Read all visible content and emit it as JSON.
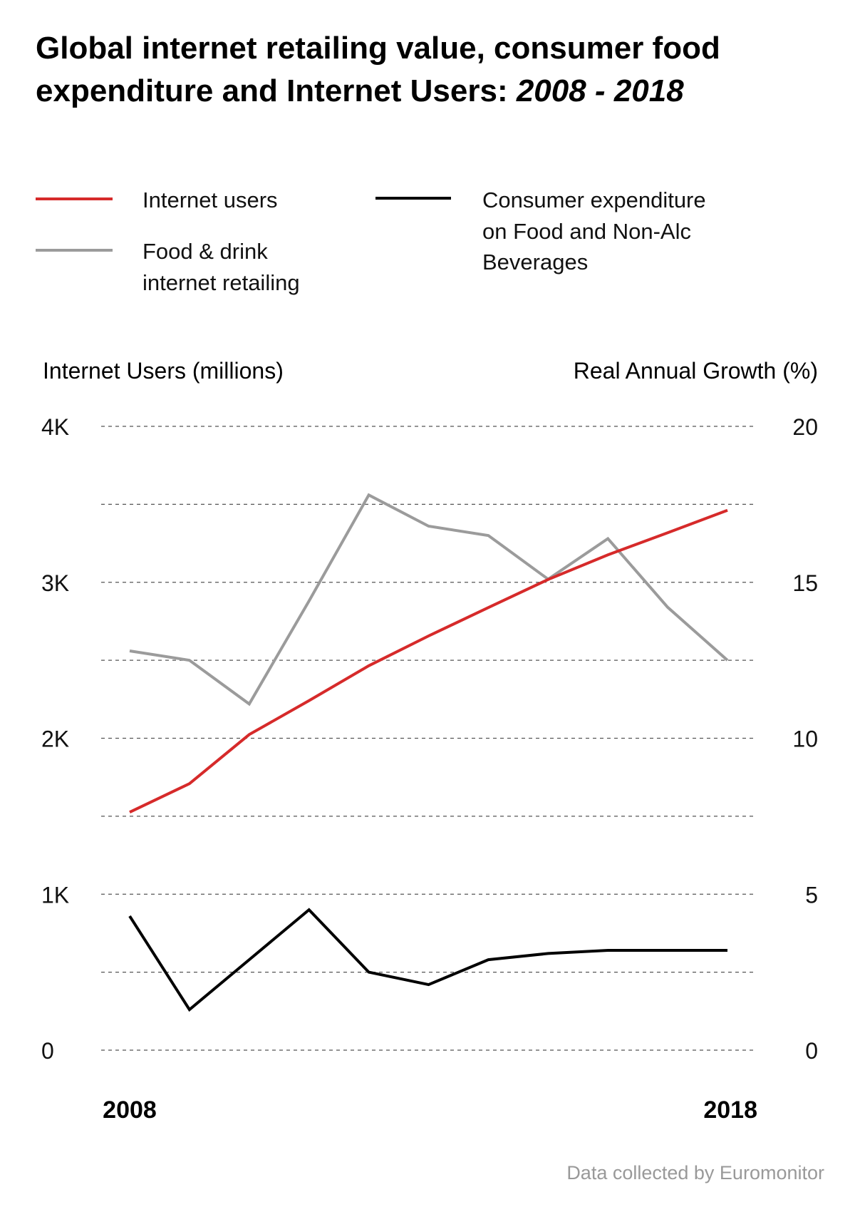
{
  "chart_data": {
    "type": "line",
    "title_line1": "Global internet retailing value, consumer food",
    "title_line2_plain": "expenditure and Internet Users: ",
    "title_line2_italic": "2008 - 2018",
    "ylabel_left": "Internet Users (millions)",
    "ylabel_right": "Real Annual Growth (%)",
    "y_left_ticks": [
      "0",
      "1K",
      "2K",
      "3K",
      "4K"
    ],
    "y_right_ticks": [
      "0",
      "5",
      "10",
      "15",
      "20"
    ],
    "ylim_left": [
      0,
      4000
    ],
    "ylim_right": [
      0,
      20
    ],
    "x": [
      2008,
      2009,
      2010,
      2011,
      2012,
      2013,
      2014,
      2015,
      2016,
      2017,
      2018
    ],
    "x_tick_labels": [
      "2008",
      "2018"
    ],
    "grid": true,
    "legend_placement": "top",
    "series": [
      {
        "name": "Internet users",
        "axis": "left",
        "color": "#d62a2a",
        "values": [
          1526,
          1709,
          2024,
          2241,
          2465,
          2656,
          2838,
          3018,
          3176,
          3318,
          3462
        ]
      },
      {
        "name": "Food & drink internet retailing",
        "axis": "right",
        "color": "#9b9b9b",
        "values": [
          12.8,
          12.5,
          11.1,
          14.4,
          17.8,
          16.8,
          16.5,
          15.1,
          16.4,
          14.2,
          12.5
        ]
      },
      {
        "name": "Consumer expenditure on Food and Non-Alc Beverages",
        "axis": "right",
        "color": "#000000",
        "values": [
          4.3,
          1.3,
          2.9,
          4.5,
          2.5,
          2.1,
          2.9,
          3.1,
          3.2,
          3.2,
          3.2
        ]
      }
    ],
    "legend": {
      "internet_users": "Internet users",
      "food_line1": "Food & drink",
      "food_line2": "internet retailing",
      "cons_line1": "Consumer expenditure",
      "cons_line2": "on Food and Non-Alc",
      "cons_line3": "Beverages"
    },
    "source": "Data collected by Euromonitor"
  }
}
